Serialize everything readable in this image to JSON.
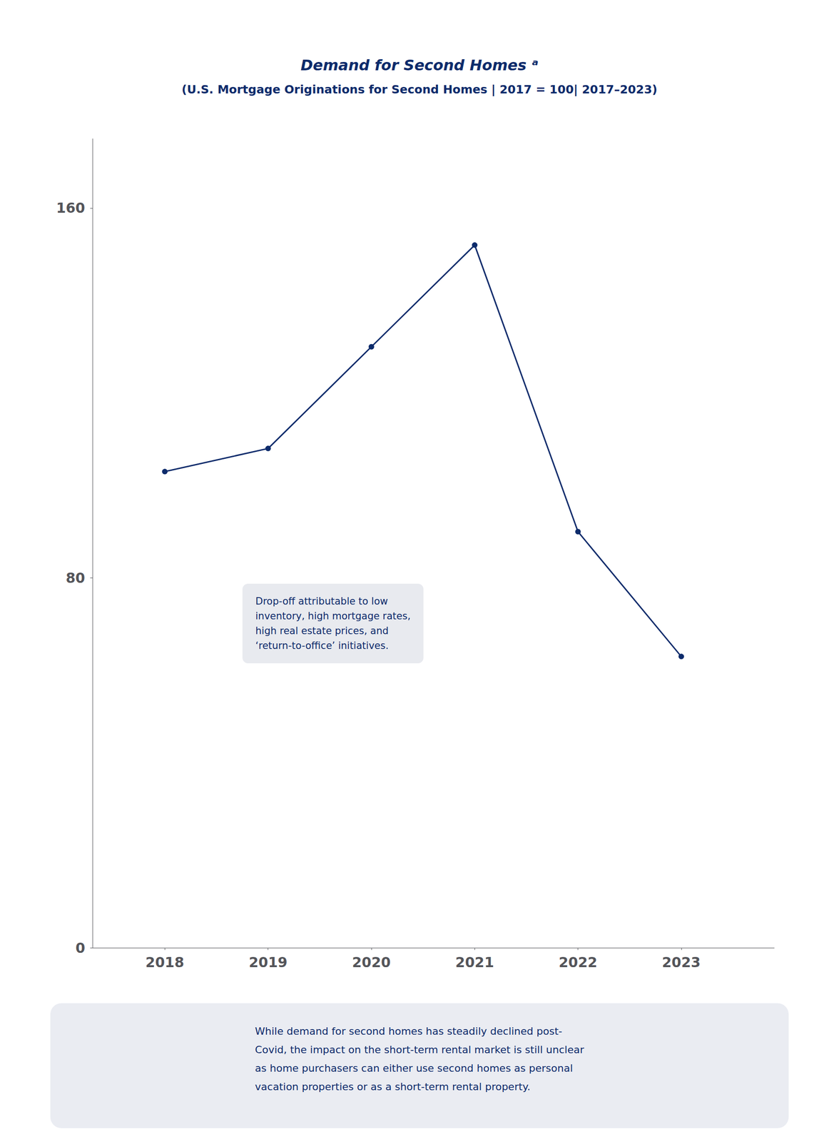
{
  "chart_data": {
    "type": "line",
    "title": "Demand for Second Homes ᵃ",
    "subtitle": "(U.S. Mortgage Originations for Second Homes | 2017 = 100| 2017–2023)",
    "x": [
      2018,
      2019,
      2020,
      2021,
      2022,
      2023
    ],
    "values": [
      103,
      108,
      130,
      152,
      90,
      63
    ],
    "color": "#0d2b6b",
    "marker": "circle",
    "xlim": [
      2017.3,
      2023.9
    ],
    "xticks": [
      2018,
      2019,
      2020,
      2021,
      2022,
      2023
    ],
    "ylim": [
      0,
      175
    ],
    "yticks": [
      0,
      80,
      160
    ],
    "grid": false,
    "annotations": [
      "Drop-off attributable to low\ninventory, high mortgage rates,\nhigh real estate prices, and\n‘return-to-office’ initiatives.",
      "While demand for second homes has steadily declined post-\nCovid, the impact on the short-term rental market is still unclear\nas home purchasers can either use second homes as personal\nvacation properties or as a short-term rental property."
    ]
  }
}
